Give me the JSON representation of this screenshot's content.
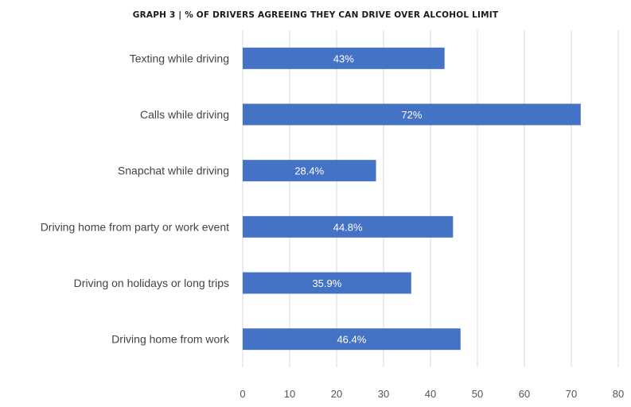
{
  "chart_data": {
    "type": "bar",
    "orientation": "horizontal",
    "title": "GRAPH 3 | % OF DRIVERS AGREEING  THEY CAN DRIVE OVER ALCOHOL LIMIT",
    "categories": [
      "Texting while driving",
      "Calls while driving",
      "Snapchat while driving",
      "Driving home from party or work event",
      "Driving on holidays or long trips",
      "Driving home from work"
    ],
    "values": [
      43,
      72,
      28.4,
      44.8,
      35.9,
      46.4
    ],
    "data_labels": [
      "43%",
      "72%",
      "28.4%",
      "44.8%",
      "35.9%",
      "46.4%"
    ],
    "xlim": [
      0,
      80
    ],
    "xticks": [
      "0",
      "10",
      "20",
      "30",
      "40",
      "50",
      "60",
      "70",
      "80"
    ],
    "xlabel": "",
    "ylabel": "",
    "grid": true,
    "bar_color": "#4472c4"
  }
}
